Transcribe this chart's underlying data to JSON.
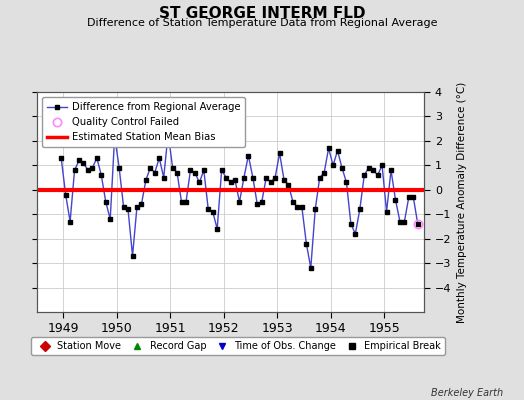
{
  "title": "ST GEORGE INTERM FLD",
  "subtitle": "Difference of Station Temperature Data from Regional Average",
  "ylabel_right": "Monthly Temperature Anomaly Difference (°C)",
  "bias_value": 0.0,
  "bias_color": "#ff0000",
  "line_color": "#4444cc",
  "marker_color": "#000000",
  "qc_fail_color": "#ff88ff",
  "background_color": "#e0e0e0",
  "plot_bg_color": "#ffffff",
  "ylim": [
    -5,
    4
  ],
  "yticks": [
    -4,
    -3,
    -2,
    -1,
    0,
    1,
    2,
    3,
    4
  ],
  "xlim_start": 1948.5,
  "xlim_end": 1955.75,
  "xticks": [
    1949,
    1950,
    1951,
    1952,
    1953,
    1954,
    1955
  ],
  "grid_color": "#cccccc",
  "watermark": "Berkeley Earth",
  "times": [
    1948.958,
    1949.042,
    1949.125,
    1949.208,
    1949.292,
    1949.375,
    1949.458,
    1949.542,
    1949.625,
    1949.708,
    1949.792,
    1949.875,
    1949.958,
    1950.042,
    1950.125,
    1950.208,
    1950.292,
    1950.375,
    1950.458,
    1950.542,
    1950.625,
    1950.708,
    1950.792,
    1950.875,
    1950.958,
    1951.042,
    1951.125,
    1951.208,
    1951.292,
    1951.375,
    1951.458,
    1951.542,
    1951.625,
    1951.708,
    1951.792,
    1951.875,
    1951.958,
    1952.042,
    1952.125,
    1952.208,
    1952.292,
    1952.375,
    1952.458,
    1952.542,
    1952.625,
    1952.708,
    1952.792,
    1952.875,
    1952.958,
    1953.042,
    1953.125,
    1953.208,
    1953.292,
    1953.375,
    1953.458,
    1953.542,
    1953.625,
    1953.708,
    1953.792,
    1953.875,
    1953.958,
    1954.042,
    1954.125,
    1954.208,
    1954.292,
    1954.375,
    1954.458,
    1954.542,
    1954.625,
    1954.708,
    1954.792,
    1954.875,
    1954.958,
    1955.042,
    1955.125,
    1955.208,
    1955.292,
    1955.375,
    1955.458,
    1955.542,
    1955.625
  ],
  "values": [
    1.3,
    -0.2,
    -1.3,
    0.8,
    1.2,
    1.1,
    0.8,
    0.9,
    1.3,
    0.6,
    -0.5,
    -1.2,
    2.2,
    0.9,
    -0.7,
    -0.8,
    -2.7,
    -0.7,
    -0.6,
    0.4,
    0.9,
    0.7,
    1.3,
    0.5,
    2.3,
    0.9,
    0.7,
    -0.5,
    -0.5,
    0.8,
    0.7,
    0.3,
    0.8,
    -0.8,
    -0.9,
    -1.6,
    0.8,
    0.5,
    0.3,
    0.4,
    -0.5,
    0.5,
    1.4,
    0.5,
    -0.6,
    -0.5,
    0.5,
    0.3,
    0.5,
    1.5,
    0.4,
    0.2,
    -0.5,
    -0.7,
    -0.7,
    -2.2,
    -3.2,
    -0.8,
    0.5,
    0.7,
    1.7,
    1.0,
    1.6,
    0.9,
    0.3,
    -1.4,
    -1.8,
    -0.8,
    0.6,
    0.9,
    0.8,
    0.6,
    1.0,
    -0.9,
    0.8,
    -0.4,
    -1.3,
    -1.3,
    -0.3,
    -0.3,
    -1.4
  ],
  "qc_fail_indices": [
    80
  ],
  "legend_line_label": "Difference from Regional Average",
  "legend_qc_label": "Quality Control Failed",
  "legend_bias_label": "Estimated Station Mean Bias",
  "bottom_legend": [
    {
      "label": "Station Move",
      "marker": "D",
      "color": "#cc0000"
    },
    {
      "label": "Record Gap",
      "marker": "^",
      "color": "#008800"
    },
    {
      "label": "Time of Obs. Change",
      "marker": "v",
      "color": "#0000cc"
    },
    {
      "label": "Empirical Break",
      "marker": "s",
      "color": "#000000"
    }
  ]
}
